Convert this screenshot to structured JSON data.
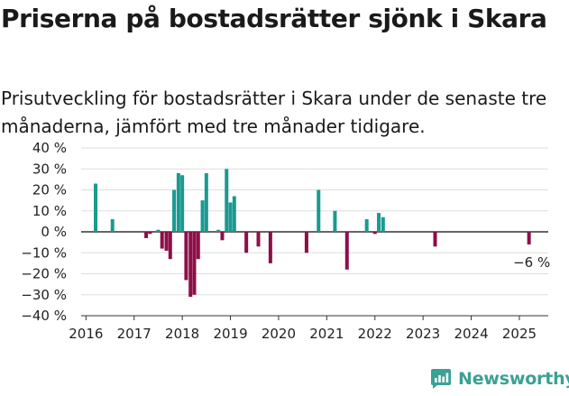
{
  "header": {
    "title": "Priserna på bostadsrätter sjönk i Skara",
    "subtitle": "Prisutveckling för bostadsrätter i Skara under de senaste tre månaderna, jämfört med tre månader tidigare."
  },
  "brand": {
    "name": "Newsworthy",
    "icon": "newsworthy-logo-icon"
  },
  "colors": {
    "positive": "#1a9a90",
    "negative": "#8c0f48",
    "axis": "#333333",
    "grid": "#dddddd"
  },
  "chart_data": {
    "type": "bar",
    "title": "",
    "xlabel": "",
    "ylabel": "",
    "ylim": [
      -40,
      40
    ],
    "yticks": [
      40,
      30,
      20,
      10,
      0,
      -10,
      -20,
      -30,
      -40
    ],
    "ytick_labels": [
      "40 %",
      "30 %",
      "20 %",
      "10 %",
      "0 %",
      "−10 %",
      "−20 %",
      "−30 %",
      "−40 %"
    ],
    "xticks": [
      "2016",
      "2017",
      "2018",
      "2019",
      "2020",
      "2021",
      "2022",
      "2023",
      "2024",
      "2025"
    ],
    "x_unit": "year",
    "grid": true,
    "annotation": {
      "text": "−6 %",
      "x": 2025.2,
      "y": -6
    },
    "values": [
      {
        "x": 2016.2,
        "y": 23
      },
      {
        "x": 2016.55,
        "y": 6
      },
      {
        "x": 2017.25,
        "y": -3
      },
      {
        "x": 2017.33,
        "y": -1
      },
      {
        "x": 2017.5,
        "y": 1
      },
      {
        "x": 2017.58,
        "y": -8
      },
      {
        "x": 2017.67,
        "y": -9
      },
      {
        "x": 2017.75,
        "y": -13
      },
      {
        "x": 2017.83,
        "y": 20
      },
      {
        "x": 2017.92,
        "y": 28
      },
      {
        "x": 2018.0,
        "y": 27
      },
      {
        "x": 2018.08,
        "y": -23
      },
      {
        "x": 2018.17,
        "y": -31
      },
      {
        "x": 2018.25,
        "y": -30
      },
      {
        "x": 2018.33,
        "y": -13
      },
      {
        "x": 2018.42,
        "y": 15
      },
      {
        "x": 2018.5,
        "y": 28
      },
      {
        "x": 2018.75,
        "y": 1
      },
      {
        "x": 2018.83,
        "y": -4
      },
      {
        "x": 2018.92,
        "y": 30
      },
      {
        "x": 2019.0,
        "y": 14
      },
      {
        "x": 2019.08,
        "y": 17
      },
      {
        "x": 2019.33,
        "y": -10
      },
      {
        "x": 2019.58,
        "y": -7
      },
      {
        "x": 2019.83,
        "y": -15
      },
      {
        "x": 2020.58,
        "y": -10
      },
      {
        "x": 2020.83,
        "y": 20
      },
      {
        "x": 2021.17,
        "y": 10
      },
      {
        "x": 2021.42,
        "y": -18
      },
      {
        "x": 2021.83,
        "y": 6
      },
      {
        "x": 2022.0,
        "y": -1
      },
      {
        "x": 2022.08,
        "y": 9
      },
      {
        "x": 2022.17,
        "y": 7
      },
      {
        "x": 2023.25,
        "y": -7
      },
      {
        "x": 2025.2,
        "y": -6
      }
    ]
  }
}
